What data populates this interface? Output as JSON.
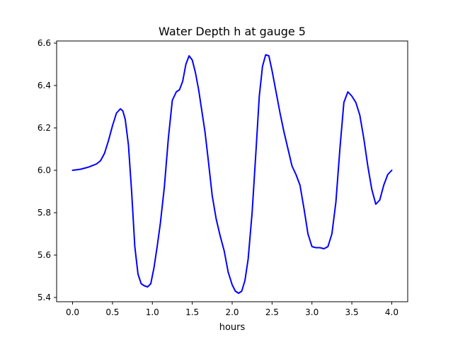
{
  "chart_data": {
    "type": "line",
    "title": "Water Depth h at gauge 5",
    "xlabel": "hours",
    "ylabel": "",
    "xlim": [
      -0.2,
      4.2
    ],
    "ylim": [
      5.38,
      6.61
    ],
    "xticks": [
      0.0,
      0.5,
      1.0,
      1.5,
      2.0,
      2.5,
      3.0,
      3.5,
      4.0
    ],
    "xtick_labels": [
      "0.0",
      "0.5",
      "1.0",
      "1.5",
      "2.0",
      "2.5",
      "3.0",
      "3.5",
      "4.0"
    ],
    "yticks": [
      5.4,
      5.6,
      5.8,
      6.0,
      6.2,
      6.4,
      6.6
    ],
    "ytick_labels": [
      "5.4",
      "5.6",
      "5.8",
      "6.0",
      "6.2",
      "6.4",
      "6.6"
    ],
    "grid": false,
    "series": [
      {
        "color": "#0000ff",
        "x": [
          0.0,
          0.1,
          0.2,
          0.3,
          0.35,
          0.4,
          0.45,
          0.5,
          0.55,
          0.6,
          0.63,
          0.66,
          0.7,
          0.74,
          0.78,
          0.82,
          0.86,
          0.9,
          0.94,
          0.98,
          1.02,
          1.06,
          1.1,
          1.15,
          1.2,
          1.25,
          1.3,
          1.34,
          1.38,
          1.42,
          1.46,
          1.5,
          1.54,
          1.58,
          1.62,
          1.66,
          1.7,
          1.75,
          1.8,
          1.85,
          1.9,
          1.95,
          2.0,
          2.04,
          2.08,
          2.12,
          2.16,
          2.2,
          2.25,
          2.3,
          2.34,
          2.38,
          2.42,
          2.46,
          2.5,
          2.55,
          2.6,
          2.65,
          2.7,
          2.75,
          2.8,
          2.85,
          2.9,
          2.95,
          3.0,
          3.05,
          3.1,
          3.15,
          3.2,
          3.25,
          3.3,
          3.35,
          3.4,
          3.45,
          3.5,
          3.55,
          3.6,
          3.65,
          3.7,
          3.75,
          3.8,
          3.85,
          3.9,
          3.95,
          4.0
        ],
        "y": [
          6.0,
          6.005,
          6.015,
          6.03,
          6.045,
          6.08,
          6.14,
          6.21,
          6.27,
          6.29,
          6.28,
          6.24,
          6.12,
          5.9,
          5.64,
          5.51,
          5.465,
          5.455,
          5.45,
          5.465,
          5.54,
          5.64,
          5.75,
          5.92,
          6.15,
          6.33,
          6.37,
          6.38,
          6.42,
          6.5,
          6.54,
          6.52,
          6.46,
          6.38,
          6.28,
          6.18,
          6.05,
          5.88,
          5.77,
          5.69,
          5.62,
          5.52,
          5.46,
          5.43,
          5.42,
          5.43,
          5.48,
          5.58,
          5.8,
          6.1,
          6.35,
          6.49,
          6.545,
          6.54,
          6.47,
          6.37,
          6.27,
          6.18,
          6.1,
          6.02,
          5.98,
          5.93,
          5.82,
          5.7,
          5.64,
          5.635,
          5.635,
          5.63,
          5.64,
          5.7,
          5.85,
          6.1,
          6.32,
          6.37,
          6.35,
          6.32,
          6.26,
          6.15,
          6.02,
          5.91,
          5.84,
          5.86,
          5.93,
          5.98,
          6.0
        ]
      }
    ]
  }
}
